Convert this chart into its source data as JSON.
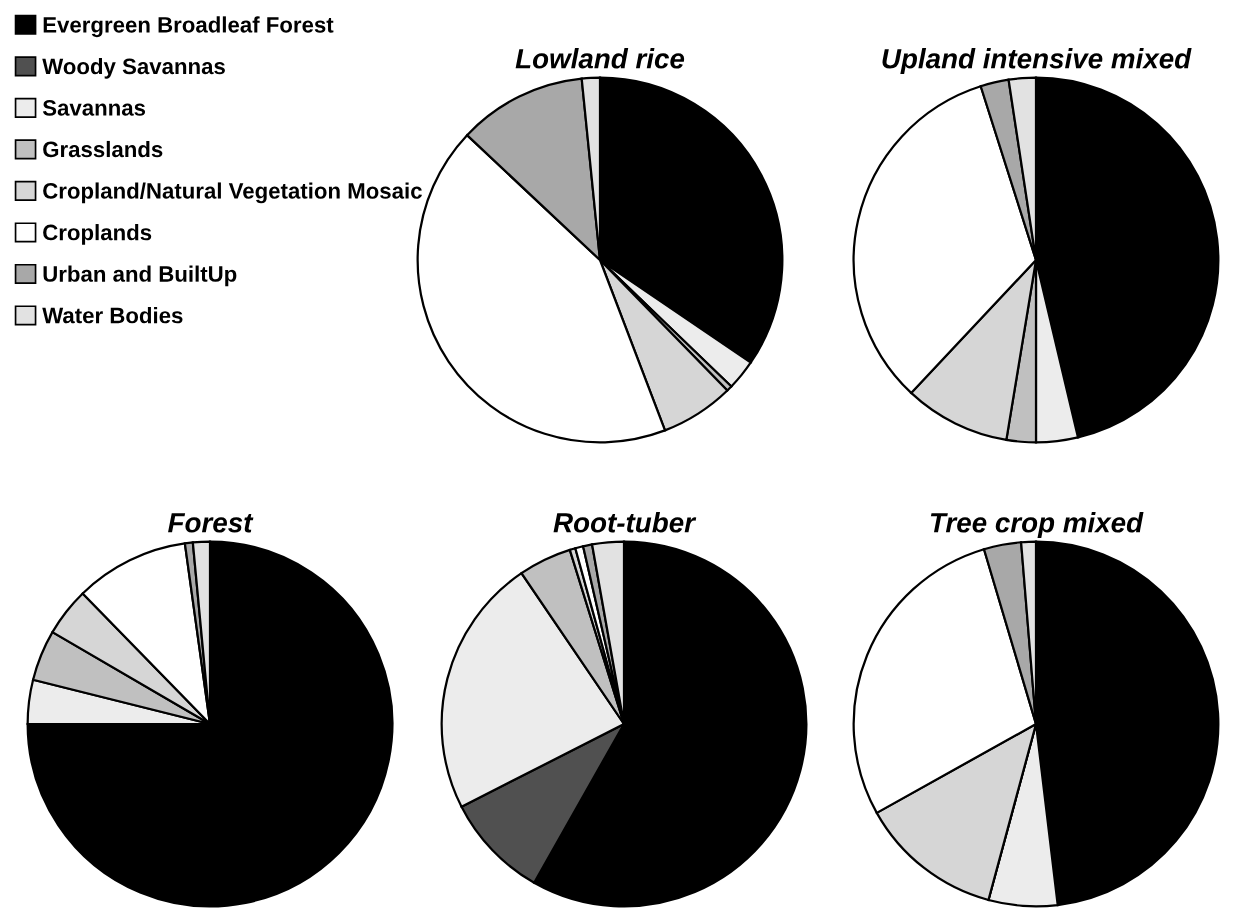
{
  "chart_data": [
    {
      "type": "pie",
      "title": "Lowland rice",
      "legend": "left",
      "categories": [
        "Evergreen Broadleaf Forest",
        "Woody Savannas",
        "Savannas",
        "Grasslands",
        "Cropland/Natural Vegetation Mosaic",
        "Croplands",
        "Urban and BuiltUp",
        "Water Bodies"
      ],
      "colors": [
        "#000000",
        "#505050",
        "#ececec",
        "#c0c0c0",
        "#d6d6d6",
        "#ffffff",
        "#a8a8a8",
        "#e2e2e2"
      ],
      "values": [
        34.5,
        0,
        2.7,
        0.5,
        6.5,
        42.8,
        11.4,
        1.6
      ]
    },
    {
      "type": "pie",
      "title": "Upland intensive mixed",
      "colors": [
        "#000000",
        "#505050",
        "#ececec",
        "#c0c0c0",
        "#d6d6d6",
        "#ffffff",
        "#a8a8a8",
        "#e2e2e2"
      ],
      "values": [
        46.3,
        0,
        3.7,
        2.6,
        9.4,
        33.1,
        2.5,
        2.4
      ]
    },
    {
      "type": "pie",
      "title": "Forest",
      "colors": [
        "#000000",
        "#505050",
        "#ececec",
        "#c0c0c0",
        "#d6d6d6",
        "#ffffff",
        "#a8a8a8",
        "#e2e2e2"
      ],
      "values": [
        75.0,
        0,
        3.9,
        4.5,
        4.3,
        10.1,
        0.7,
        1.5
      ]
    },
    {
      "type": "pie",
      "title": "Root-tuber",
      "colors": [
        "#000000",
        "#505050",
        "#ececec",
        "#c0c0c0",
        "#d6d6d6",
        "#ffffff",
        "#a8a8a8",
        "#e2e2e2"
      ],
      "values": [
        58.2,
        9.3,
        23.0,
        4.7,
        0.5,
        0.7,
        0.8,
        2.8
      ]
    },
    {
      "type": "pie",
      "title": "Tree crop mixed",
      "colors": [
        "#000000",
        "#505050",
        "#ececec",
        "#c0c0c0",
        "#d6d6d6",
        "#ffffff",
        "#a8a8a8",
        "#e2e2e2"
      ],
      "values": [
        48.1,
        0,
        6.1,
        0,
        12.7,
        28.5,
        3.3,
        1.3
      ]
    }
  ]
}
